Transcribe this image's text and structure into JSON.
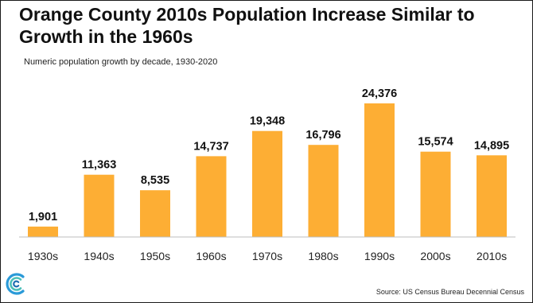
{
  "title": "Orange County 2010s Population Increase Similar to Growth in the 1960s",
  "subtitle": "Numeric population growth by decade, 1930-2020",
  "source": "Source:  US Census Bureau Decennial Census",
  "logo_icon": "concentric-c-logo-icon",
  "chart_data": {
    "type": "bar",
    "title": "Orange County 2010s Population Increase Similar to Growth in the 1960s",
    "subtitle": "Numeric population growth by decade, 1930-2020",
    "xlabel": "",
    "ylabel": "",
    "categories": [
      "1930s",
      "1940s",
      "1950s",
      "1960s",
      "1970s",
      "1980s",
      "1990s",
      "2000s",
      "2010s"
    ],
    "values": [
      1901,
      11363,
      8535,
      14737,
      19348,
      16796,
      24376,
      15574,
      14895
    ],
    "value_labels": [
      "1,901",
      "11,363",
      "8,535",
      "14,737",
      "19,348",
      "16,796",
      "24,376",
      "15,574",
      "14,895"
    ],
    "ylim": [
      0,
      24376
    ],
    "bar_color": "#FDAE34",
    "grid": false,
    "legend": "none"
  }
}
